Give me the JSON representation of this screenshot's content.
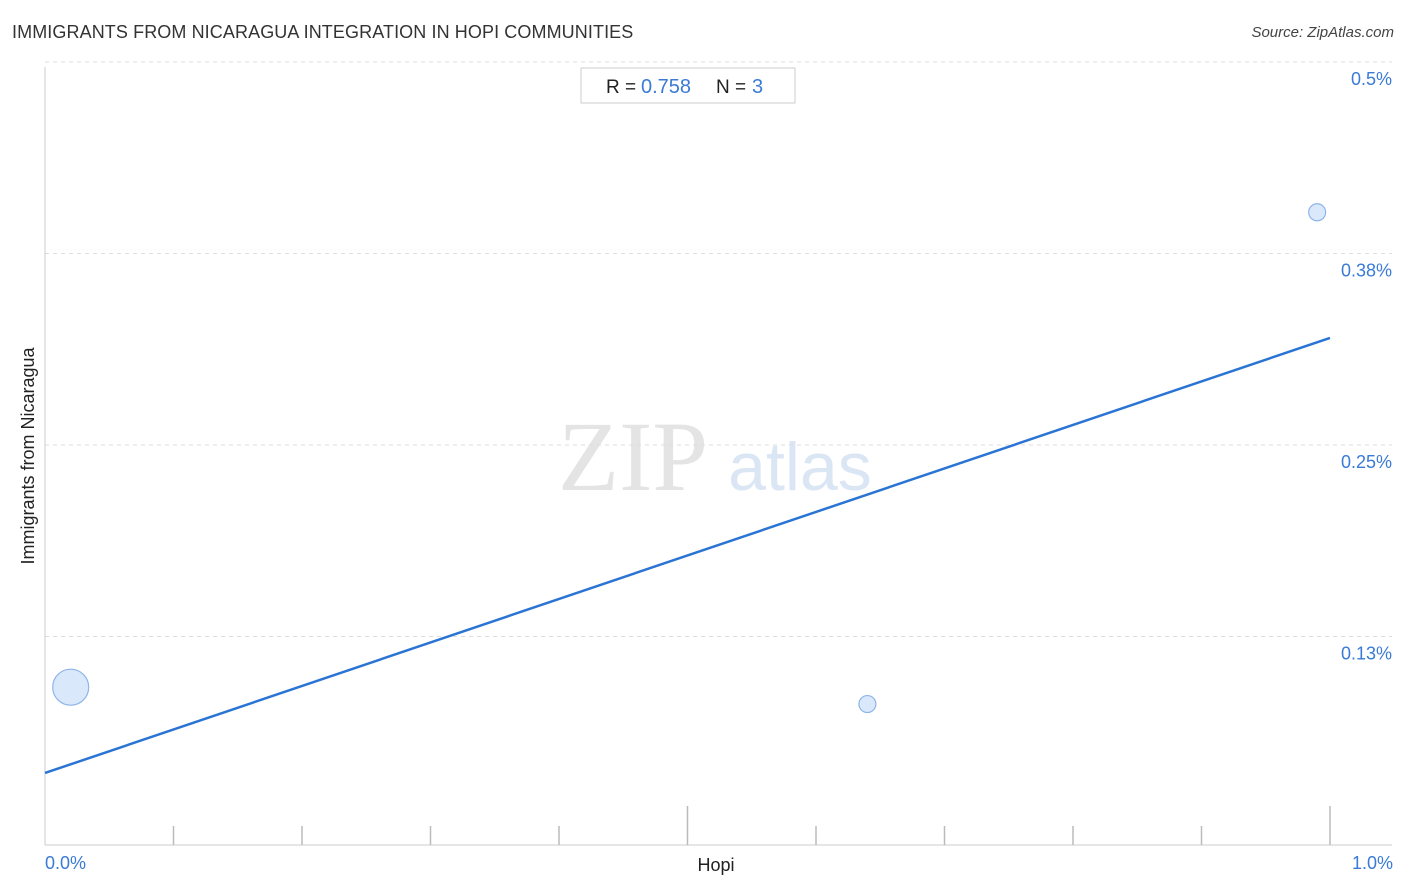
{
  "header": {
    "title": "IMMIGRANTS FROM NICARAGUA INTEGRATION IN HOPI COMMUNITIES",
    "source": "Source: ZipAtlas.com"
  },
  "stats": {
    "r_label": "R =",
    "r_value": "0.758",
    "n_label": "N =",
    "n_value": "3"
  },
  "watermark": {
    "zip": "ZIP",
    "atlas": "atlas"
  },
  "colors": {
    "trend_line": "#2a74d4",
    "point_fill": "#d6e6fb",
    "point_stroke": "#8fb5e8",
    "tick_label": "#3a7bd5",
    "grid": "#dddddd"
  },
  "chart_data": {
    "type": "scatter",
    "xlabel": "Hopi",
    "ylabel": "Immigrants from Nicaragua",
    "xlim": [
      0,
      1.0
    ],
    "ylim": [
      0,
      0.5
    ],
    "x_tick_labels": [
      {
        "value": 0,
        "label": "0.0%"
      },
      {
        "value": 1.0,
        "label": "1.0%"
      }
    ],
    "y_tick_labels": [
      {
        "value": 0.5,
        "label": "0.5%"
      },
      {
        "value": 0.375,
        "label": "0.38%"
      },
      {
        "value": 0.25,
        "label": "0.25%"
      },
      {
        "value": 0.125,
        "label": "0.13%"
      }
    ],
    "grid": true,
    "points": [
      {
        "x": 0.02,
        "y": 0.103,
        "size": "large"
      },
      {
        "x": 0.64,
        "y": 0.092,
        "size": "small"
      },
      {
        "x": 0.99,
        "y": 0.413,
        "size": "small"
      }
    ],
    "trend_line": {
      "x": [
        0,
        1.0
      ],
      "y": [
        0.047,
        0.331
      ]
    },
    "stats": {
      "R": 0.758,
      "N": 3
    }
  }
}
